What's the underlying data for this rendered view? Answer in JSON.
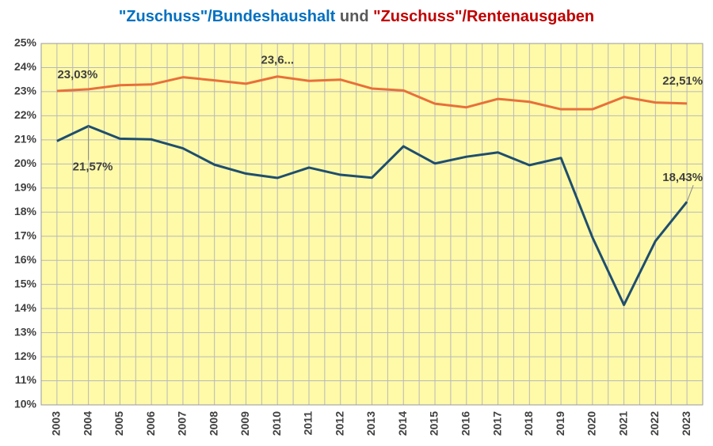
{
  "chart_data": {
    "type": "line",
    "title": [
      {
        "text": "\"Zuschuss\"/Bundeshaushalt",
        "color": "#0070c0"
      },
      {
        "text": "und",
        "color": "#595959"
      },
      {
        "text": "\"Zuschuss\"/Rentenausgaben",
        "color": "#c00000"
      }
    ],
    "categories": [
      "2003",
      "2004",
      "2005",
      "2006",
      "2007",
      "2008",
      "2009",
      "2010",
      "2011",
      "2012",
      "2013",
      "2014",
      "2015",
      "2016",
      "2017",
      "2018",
      "2019",
      "2020",
      "2021",
      "2022",
      "2023"
    ],
    "series": [
      {
        "color": "#e8703a",
        "values": [
          23.03,
          23.1,
          23.27,
          23.3,
          23.6,
          23.47,
          23.33,
          23.63,
          23.45,
          23.5,
          23.13,
          23.05,
          22.5,
          22.35,
          22.7,
          22.58,
          22.27,
          22.27,
          22.78,
          22.55,
          22.51
        ],
        "value_labels": [
          "23,03%",
          null,
          null,
          null,
          null,
          null,
          null,
          "23,6...",
          null,
          null,
          null,
          null,
          null,
          null,
          null,
          null,
          null,
          null,
          null,
          null,
          "22,51%"
        ]
      },
      {
        "color": "#1f4e6e",
        "values": [
          20.95,
          21.57,
          21.05,
          21.02,
          20.65,
          19.97,
          19.6,
          19.42,
          19.85,
          19.55,
          19.43,
          20.73,
          20.02,
          20.3,
          20.48,
          19.95,
          20.25,
          16.95,
          14.15,
          16.8,
          18.43
        ],
        "value_labels": [
          null,
          "21,57%",
          null,
          null,
          null,
          null,
          null,
          null,
          null,
          null,
          null,
          null,
          null,
          null,
          null,
          null,
          null,
          null,
          null,
          null,
          "18,43%"
        ]
      }
    ],
    "ylim": [
      10,
      25
    ],
    "yticks": [
      {
        "value": 10,
        "label": "10%"
      },
      {
        "value": 11,
        "label": "11%"
      },
      {
        "value": 12,
        "label": "12%"
      },
      {
        "value": 13,
        "label": "13%"
      },
      {
        "value": 14,
        "label": "14%"
      },
      {
        "value": 15,
        "label": "15%"
      },
      {
        "value": 16,
        "label": "16%"
      },
      {
        "value": 17,
        "label": "17%"
      },
      {
        "value": 18,
        "label": "18%"
      },
      {
        "value": 19,
        "label": "19%"
      },
      {
        "value": 20,
        "label": "20%"
      },
      {
        "value": 21,
        "label": "21%"
      },
      {
        "value": 22,
        "label": "22%"
      },
      {
        "value": 23,
        "label": "23%"
      },
      {
        "value": 24,
        "label": "24%"
      },
      {
        "value": 25,
        "label": "25%"
      }
    ],
    "grid": true,
    "background": "#fffaa8"
  }
}
